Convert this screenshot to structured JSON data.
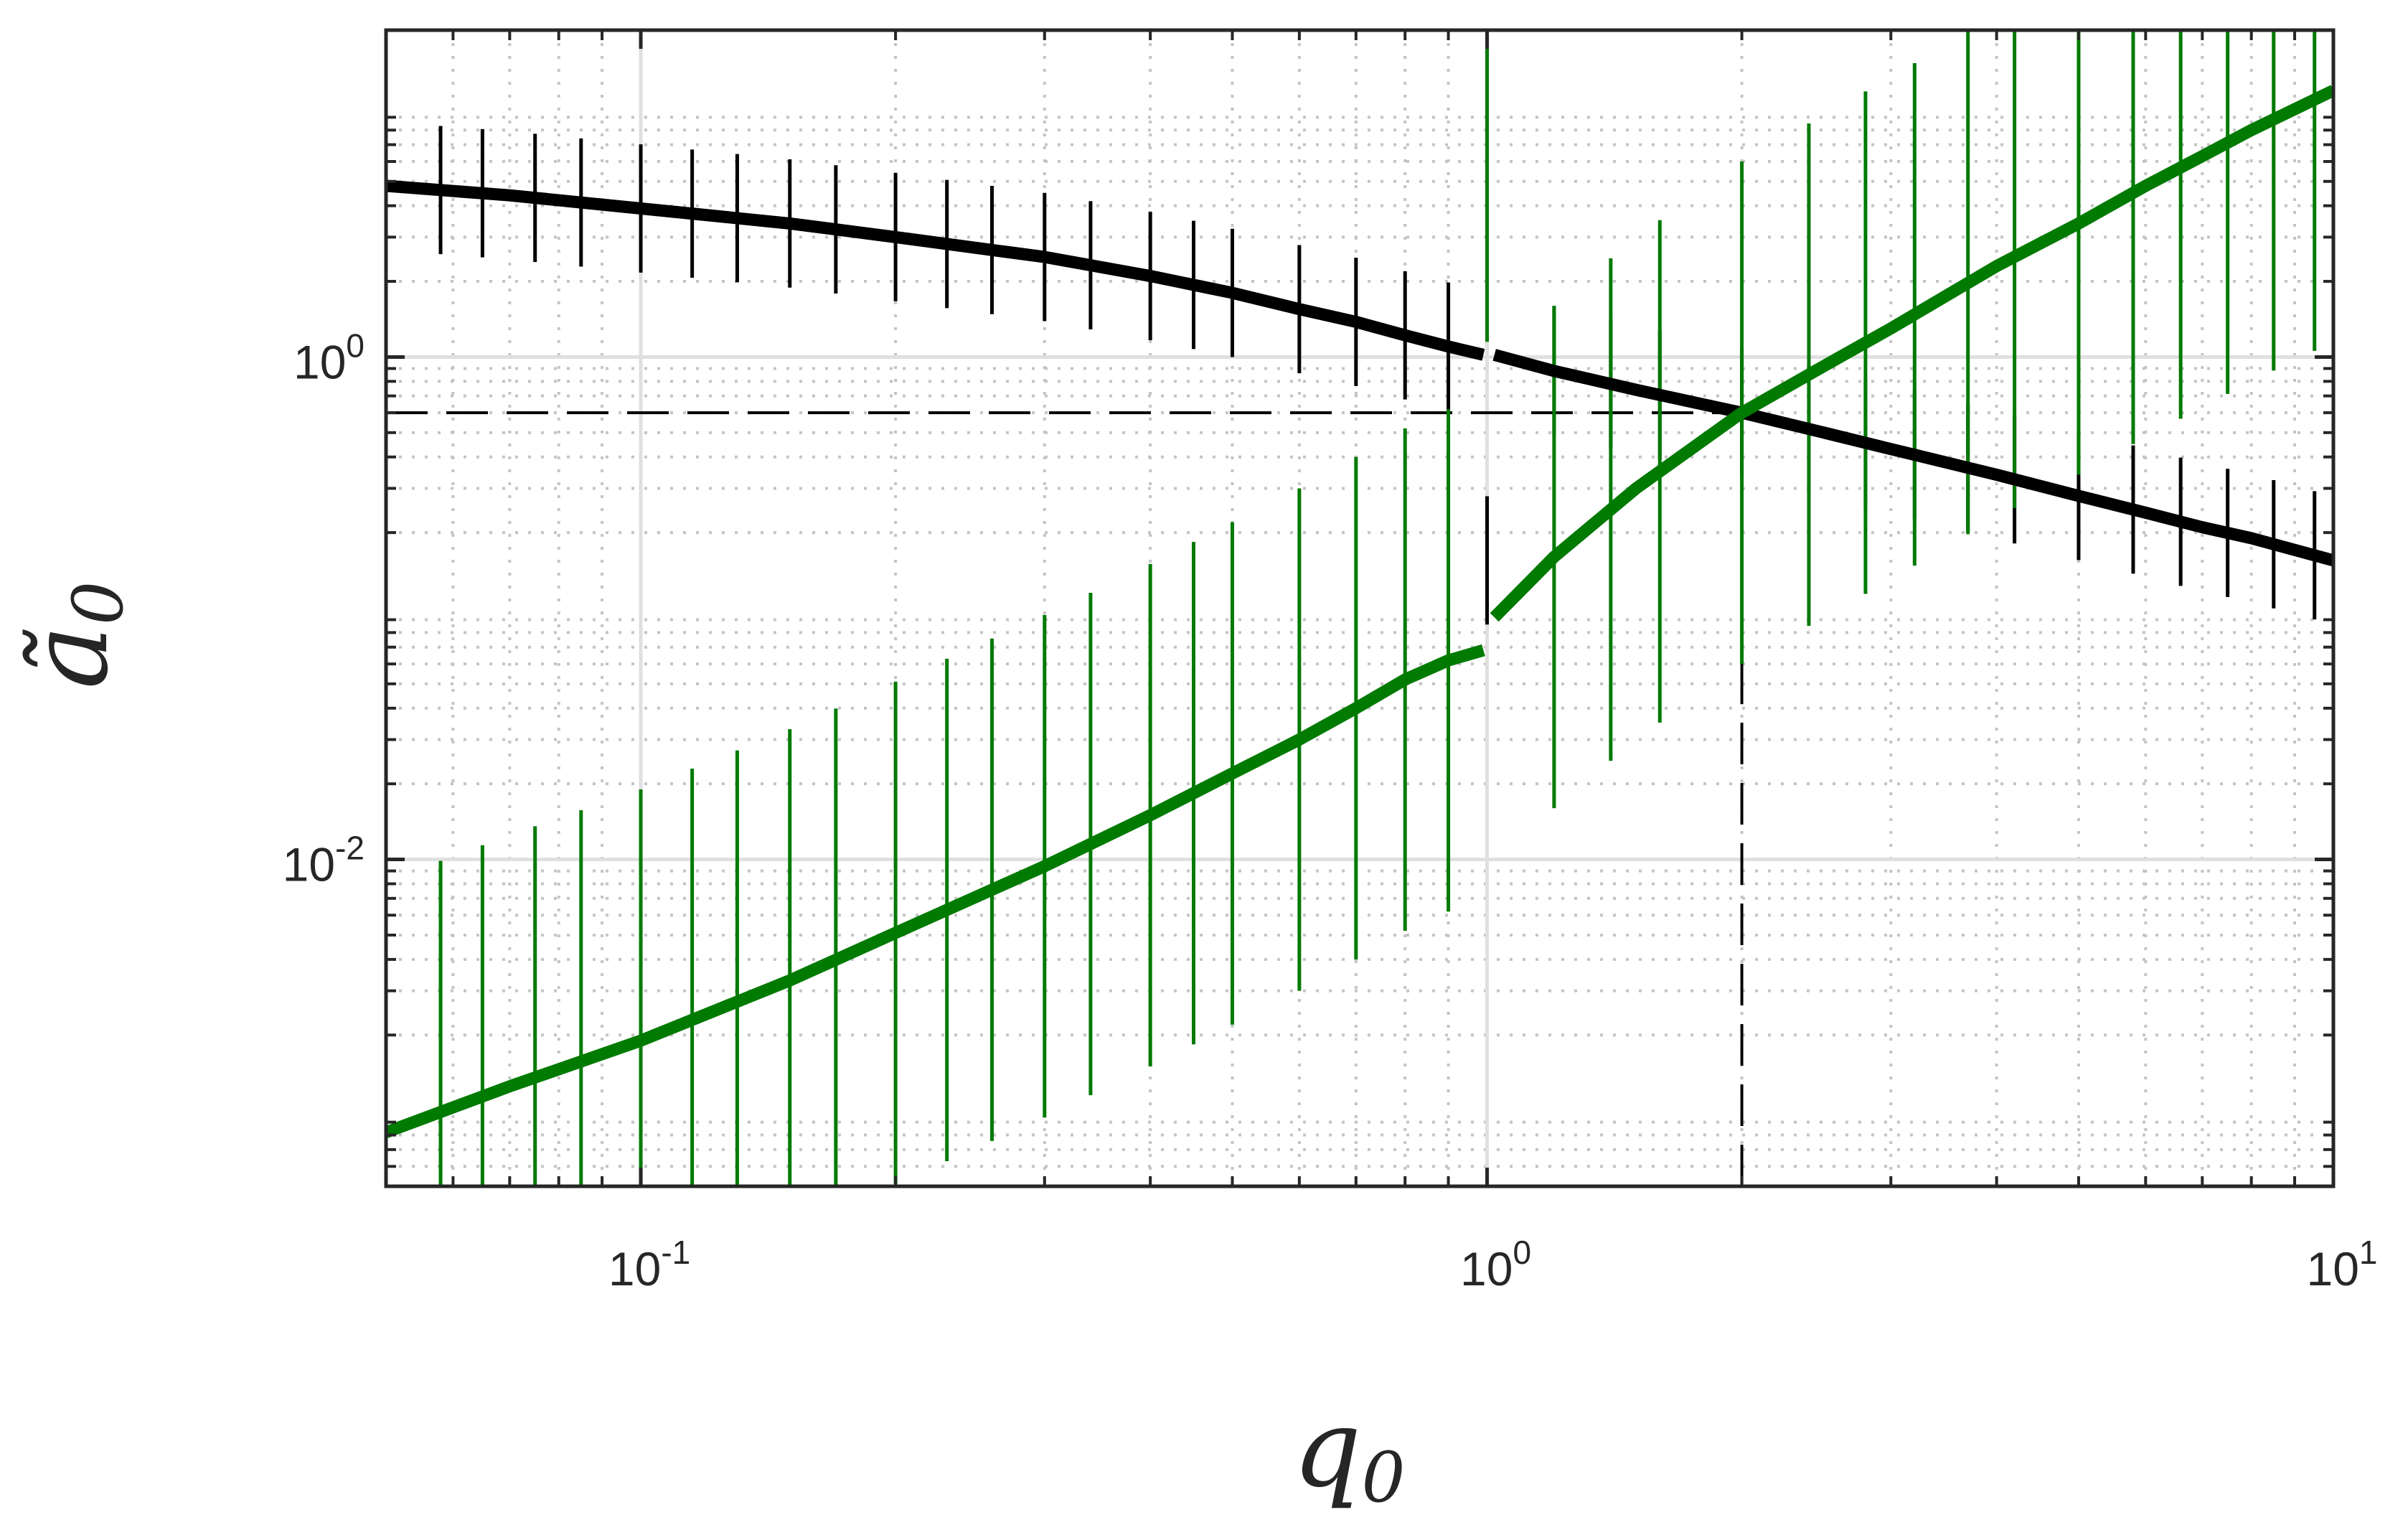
{
  "chart_data": {
    "type": "line",
    "x_scale": "log",
    "y_scale": "log",
    "xlim": [
      0.05,
      10
    ],
    "ylim": [
      0.0005,
      20
    ],
    "grid": true,
    "minor_grid": true,
    "xlabel": "q",
    "xlabel_sub": "0",
    "ylabel": "ã",
    "ylabel_sub": "0",
    "x_ticks": [
      {
        "value": 0.1,
        "base": "10",
        "exp": "-1"
      },
      {
        "value": 1,
        "base": "10",
        "exp": "0"
      },
      {
        "value": 10,
        "base": "10",
        "exp": "1"
      }
    ],
    "y_ticks": [
      {
        "value": 0.01,
        "base": "10",
        "exp": "-2"
      },
      {
        "value": 1,
        "base": "10",
        "exp": "0"
      }
    ],
    "reference_lines": [
      {
        "orientation": "horizontal",
        "value": 0.6,
        "x_from": 0.05,
        "x_to": 2,
        "style": "dashed",
        "color": "#000000"
      },
      {
        "orientation": "vertical",
        "value": 2,
        "y_from": 0.0005,
        "y_to": 0.6,
        "style": "dashed",
        "color": "#000000"
      }
    ],
    "series": [
      {
        "color": "#000000",
        "segments": [
          {
            "x": [
              0.05,
              0.07,
              0.1,
              0.15,
              0.2,
              0.3,
              0.4,
              0.5,
              0.6,
              0.7,
              0.8,
              0.9,
              0.99
            ],
            "y": [
              4.8,
              4.4,
              3.9,
              3.4,
              3.0,
              2.5,
              2.1,
              1.8,
              1.55,
              1.38,
              1.22,
              1.1,
              1.02
            ]
          },
          {
            "x": [
              1.02,
              1.2,
              1.5,
              2.0,
              2.5,
              3.0,
              4.0,
              5.0,
              6.0,
              7.0,
              8.0,
              10.0
            ],
            "y": [
              1.02,
              0.88,
              0.74,
              0.6,
              0.5,
              0.43,
              0.34,
              0.28,
              0.24,
              0.21,
              0.19,
              0.155
            ]
          }
        ],
        "error_bars": {
          "x": [
            0.05,
            0.058,
            0.065,
            0.075,
            0.085,
            0.1,
            0.115,
            0.13,
            0.15,
            0.17,
            0.2,
            0.23,
            0.26,
            0.3,
            0.34,
            0.4,
            0.45,
            0.5,
            0.6,
            0.7,
            0.8,
            0.9,
            1.0,
            1.2,
            1.4,
            1.6,
            2.0,
            2.4,
            2.8,
            3.2,
            3.7,
            4.2,
            5.0,
            5.8,
            6.6,
            7.5,
            8.5,
            9.5,
            10.0
          ],
          "half_factor": 1.8
        }
      },
      {
        "color": "#007a00",
        "segments": [
          {
            "x": [
              0.05,
              0.07,
              0.1,
              0.15,
              0.2,
              0.3,
              0.4,
              0.5,
              0.6,
              0.7,
              0.8,
              0.9,
              0.99
            ],
            "y": [
              0.00082,
              0.00125,
              0.0019,
              0.0033,
              0.0051,
              0.0094,
              0.015,
              0.022,
              0.03,
              0.04,
              0.052,
              0.062,
              0.068
            ]
          },
          {
            "x": [
              1.02,
              1.2,
              1.5,
              2.0,
              2.5,
              3.0,
              4.0,
              5.0,
              6.0,
              7.0,
              8.0,
              10.0
            ],
            "y": [
              0.092,
              0.16,
              0.3,
              0.6,
              0.92,
              1.3,
              2.3,
              3.4,
              4.8,
              6.3,
              8.0,
              11.5
            ]
          }
        ],
        "error_bars": {
          "x": [
            0.05,
            0.058,
            0.065,
            0.075,
            0.085,
            0.1,
            0.115,
            0.13,
            0.15,
            0.17,
            0.2,
            0.23,
            0.26,
            0.3,
            0.34,
            0.4,
            0.45,
            0.5,
            0.6,
            0.7,
            0.8,
            0.9,
            1.0,
            1.2,
            1.4,
            1.6,
            2.0,
            2.4,
            2.8,
            3.2,
            3.7,
            4.2,
            5.0,
            5.8,
            6.6,
            7.5,
            8.5,
            9.5,
            10.0
          ],
          "half_factor": 10
        }
      }
    ]
  }
}
